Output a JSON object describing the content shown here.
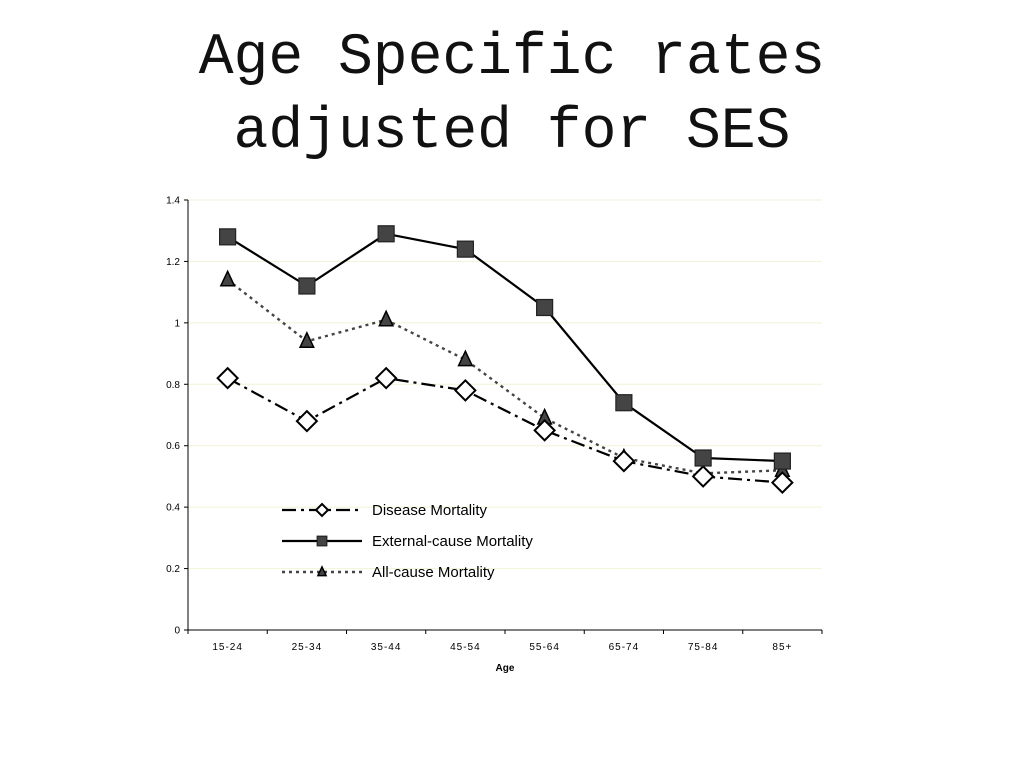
{
  "slide": {
    "title_line1": "Age Specific rates",
    "title_line2": "adjusted for SES"
  },
  "chart_data": {
    "type": "line",
    "title": "Age Specific rates adjusted for SES",
    "xlabel": "Age",
    "ylabel": "",
    "categories": [
      "15-24",
      "25-34",
      "35-44",
      "45-54",
      "55-64",
      "65-74",
      "75-84",
      "85+"
    ],
    "ylim": [
      0,
      1.4
    ],
    "yticks": [
      0,
      0.2,
      0.4,
      0.6,
      0.8,
      1,
      1.2,
      1.4
    ],
    "grid": true,
    "legend_position": "lower-left",
    "series": [
      {
        "name": "Disease Mortality",
        "values": [
          0.82,
          0.68,
          0.82,
          0.78,
          0.65,
          0.55,
          0.5,
          0.48
        ],
        "line_style": "dash-dot",
        "marker": "hollow-diamond",
        "color": "#000000"
      },
      {
        "name": "External-cause Mortality",
        "values": [
          1.28,
          1.12,
          1.29,
          1.24,
          1.05,
          0.74,
          0.56,
          0.55
        ],
        "line_style": "solid",
        "marker": "filled-square",
        "color": "#000000"
      },
      {
        "name": "All-cause Mortality",
        "values": [
          1.14,
          0.94,
          1.01,
          0.88,
          0.69,
          0.56,
          0.51,
          0.52
        ],
        "line_style": "dotted",
        "marker": "filled-triangle",
        "color": "#444444"
      }
    ],
    "colors": {
      "grid": "#f2f2d8",
      "marker_fill_dark": "#444444",
      "axis": "#000000"
    }
  }
}
